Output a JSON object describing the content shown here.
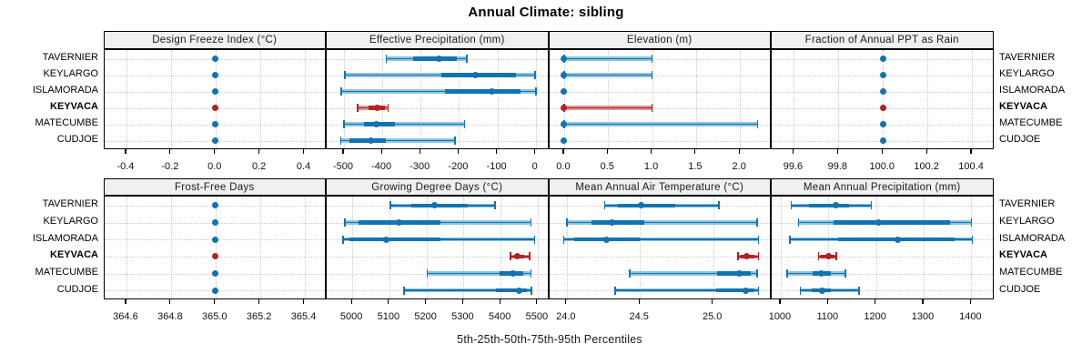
{
  "title": "Annual Climate: sibling",
  "x_axis_caption": "5th-25th-50th-75th-95th Percentiles",
  "stations": [
    "TAVERNIER",
    "KEYLARGO",
    "ISLAMORADA",
    "KEYVACA",
    "MATECUMBE",
    "CUDJOE"
  ],
  "highlight_station": "KEYVACA",
  "colors": {
    "point_blue": "#1273b2",
    "point_blue_light": "#90c4e0",
    "point_red": "#b22222",
    "point_red_light": "#d99896",
    "header_bg": "#f0f0f0",
    "grid": "#c9c9c9",
    "panel_border": "#000000",
    "background": "#ffffff"
  },
  "chart_data": {
    "type": "dotplot-percentiles",
    "note": "whisker = 5th-95th percentile with end caps, thick bar = 25th-75th, dot = median; values per station are [p5,p25,p50,p75,p95]",
    "rows": 2,
    "cols": 4,
    "legend_caption": "5th-25th-50th-75th-95th Percentiles",
    "panels": [
      {
        "title": "Design Freeze Index (°C)",
        "xlim": [
          -0.5,
          0.5
        ],
        "ticks": [
          -0.4,
          -0.2,
          0.0,
          0.2,
          0.4
        ],
        "tick_labels": [
          "-0.4",
          "-0.2",
          "0.0",
          "0.2",
          "0.4"
        ],
        "values": [
          [
            0,
            0,
            0,
            0,
            0
          ],
          [
            0,
            0,
            0,
            0,
            0
          ],
          [
            0,
            0,
            0,
            0,
            0
          ],
          [
            0,
            0,
            0,
            0,
            0
          ],
          [
            0,
            0,
            0,
            0,
            0
          ],
          [
            0,
            0,
            0,
            0,
            0
          ]
        ]
      },
      {
        "title": "Effective Precipitation (mm)",
        "xlim": [
          -545,
          35
        ],
        "ticks": [
          -500,
          -400,
          -300,
          -200,
          -100,
          0
        ],
        "tick_labels": [
          "-500",
          "-400",
          "-300",
          "-200",
          "-100",
          "0"
        ],
        "values": [
          [
            -390,
            -320,
            -252,
            -205,
            -180
          ],
          [
            -498,
            -245,
            -158,
            -52,
            -2
          ],
          [
            -507,
            -237,
            -114,
            -40,
            0
          ],
          [
            -465,
            -437,
            -414,
            -394,
            -385
          ],
          [
            -500,
            -448,
            -415,
            -368,
            -186
          ],
          [
            -508,
            -485,
            -430,
            -390,
            -210
          ]
        ]
      },
      {
        "title": "Elevation (m)",
        "xlim": [
          -0.17,
          2.36
        ],
        "ticks": [
          0.0,
          0.5,
          1.0,
          1.5,
          2.0
        ],
        "tick_labels": [
          "0.0",
          "0.5",
          "1.0",
          "1.5",
          "2.0"
        ],
        "values": [
          [
            0,
            0,
            0,
            0,
            1
          ],
          [
            0,
            0,
            0,
            0,
            1
          ],
          [
            0,
            0,
            0,
            0,
            0
          ],
          [
            0,
            0,
            0,
            0,
            1
          ],
          [
            0,
            0,
            0,
            0,
            2.2
          ],
          [
            0,
            0,
            0,
            0,
            0
          ]
        ]
      },
      {
        "title": "Fraction of Annual PPT as Rain",
        "xlim": [
          99.5,
          100.5
        ],
        "ticks": [
          99.6,
          99.8,
          100.0,
          100.2,
          100.4
        ],
        "tick_labels": [
          "99.6",
          "99.8",
          "100.0",
          "100.2",
          "100.4"
        ],
        "values": [
          [
            100,
            100,
            100,
            100,
            100
          ],
          [
            100,
            100,
            100,
            100,
            100
          ],
          [
            100,
            100,
            100,
            100,
            100
          ],
          [
            100,
            100,
            100,
            100,
            100
          ],
          [
            100,
            100,
            100,
            100,
            100
          ],
          [
            100,
            100,
            100,
            100,
            100
          ]
        ]
      },
      {
        "title": "Frost-Free Days",
        "xlim": [
          364.5,
          365.5
        ],
        "ticks": [
          364.6,
          364.8,
          365.0,
          365.2,
          365.4
        ],
        "tick_labels": [
          "364.6",
          "364.8",
          "365.0",
          "365.2",
          "365.4"
        ],
        "values": [
          [
            365,
            365,
            365,
            365,
            365
          ],
          [
            365,
            365,
            365,
            365,
            365
          ],
          [
            365,
            365,
            365,
            365,
            365
          ],
          [
            365,
            365,
            365,
            365,
            365
          ],
          [
            365,
            365,
            365,
            365,
            365
          ],
          [
            365,
            365,
            365,
            365,
            365
          ]
        ]
      },
      {
        "title": "Growing Degree Days (°C)",
        "xlim": [
          4931,
          5531
        ],
        "ticks": [
          5000,
          5100,
          5200,
          5300,
          5400,
          5500
        ],
        "tick_labels": [
          "5000",
          "5100",
          "5200",
          "5300",
          "5400",
          "5500"
        ],
        "values": [
          [
            5103,
            5160,
            5222,
            5311,
            5385
          ],
          [
            4980,
            5017,
            5125,
            5239,
            5482
          ],
          [
            4975,
            4993,
            5091,
            5239,
            5492
          ],
          [
            5426,
            5437,
            5446,
            5464,
            5478
          ],
          [
            5202,
            5398,
            5432,
            5462,
            5482
          ],
          [
            5140,
            5388,
            5450,
            5470,
            5483
          ]
        ]
      },
      {
        "title": "Mean Annual Air Temperature (°C)",
        "xlim": [
          23.88,
          25.4
        ],
        "ticks": [
          24.0,
          24.5,
          25.0
        ],
        "tick_labels": [
          "24.0",
          "24.5",
          "25.0"
        ],
        "values": [
          [
            24.26,
            24.35,
            24.51,
            24.74,
            25.04
          ],
          [
            24.0,
            24.17,
            24.31,
            24.53,
            25.3
          ],
          [
            23.98,
            24.05,
            24.27,
            24.5,
            25.31
          ],
          [
            25.17,
            25.19,
            25.23,
            25.28,
            25.31
          ],
          [
            24.43,
            25.03,
            25.18,
            25.26,
            25.3
          ],
          [
            24.33,
            25.02,
            25.22,
            25.28,
            25.31
          ]
        ]
      },
      {
        "title": "Mean Annual Precipitation (mm)",
        "xlim": [
          981,
          1448
        ],
        "ticks": [
          1000,
          1100,
          1200,
          1300,
          1400
        ],
        "tick_labels": [
          "1000",
          "1100",
          "1200",
          "1300",
          "1400"
        ],
        "values": [
          [
            1022,
            1060,
            1115,
            1143,
            1190
          ],
          [
            1037,
            1111,
            1205,
            1355,
            1400
          ],
          [
            1019,
            1121,
            1246,
            1365,
            1402
          ],
          [
            1079,
            1085,
            1100,
            1112,
            1117
          ],
          [
            1013,
            1067,
            1086,
            1105,
            1136
          ],
          [
            1041,
            1065,
            1087,
            1105,
            1164
          ]
        ]
      }
    ]
  }
}
